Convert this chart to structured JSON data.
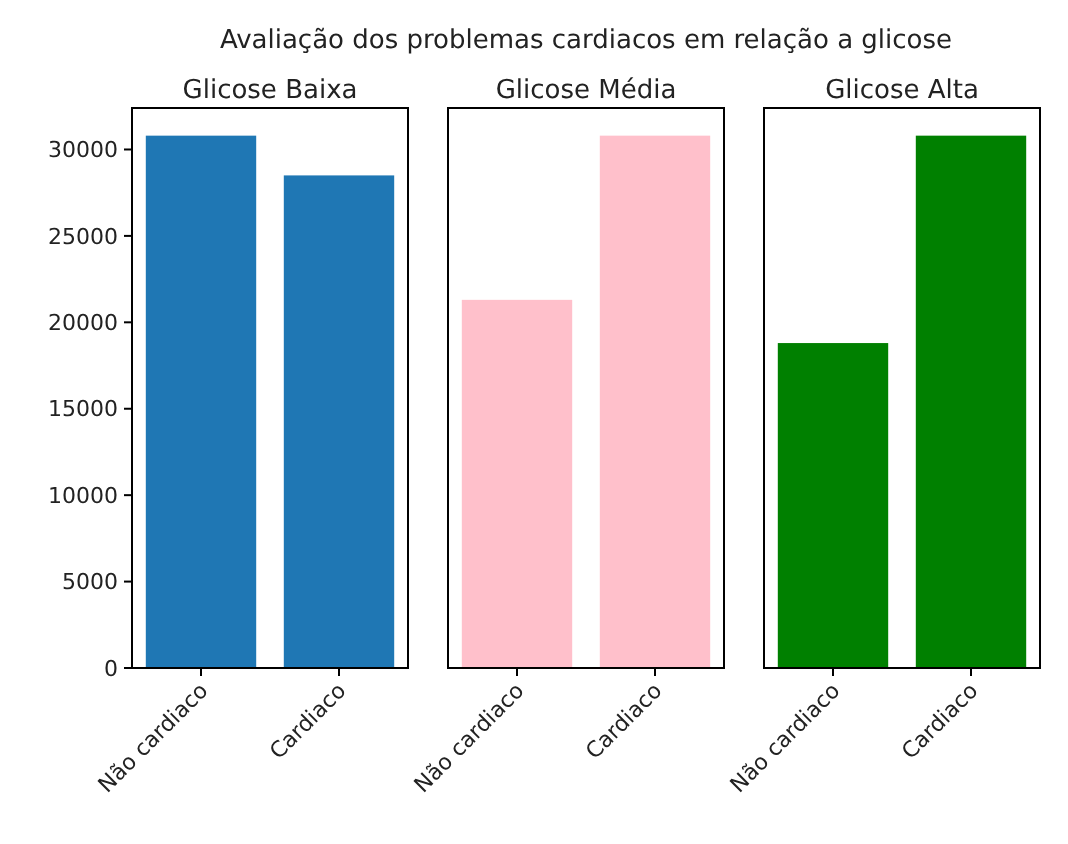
{
  "chart_data": [
    {
      "type": "bar",
      "annotations": [
        "Avaliação dos problemas cardiacos em relação a glicose"
      ],
      "title": "Glicose Baixa",
      "categories": [
        "Não cardiaco",
        "Cardiaco"
      ],
      "values": [
        30800,
        28500
      ],
      "color": "#1f77b4",
      "ylim": [
        0,
        32400
      ],
      "yticks": [
        0,
        5000,
        10000,
        15000,
        20000,
        25000,
        30000
      ],
      "grid": false
    },
    {
      "type": "bar",
      "title": "Glicose Média",
      "categories": [
        "Não cardiaco",
        "Cardiaco"
      ],
      "values": [
        21300,
        30800
      ],
      "color": "#ffc0cb",
      "ylim": [
        0,
        32400
      ],
      "grid": false,
      "tick_labels": "x"
    },
    {
      "type": "bar",
      "title": "Glicose Alta",
      "categories": [
        "Não cardiaco",
        "Cardiaco"
      ],
      "values": [
        18800,
        30800
      ],
      "color": "#008000",
      "ylim": [
        0,
        32400
      ],
      "grid": false,
      "tick_labels": "x"
    }
  ]
}
